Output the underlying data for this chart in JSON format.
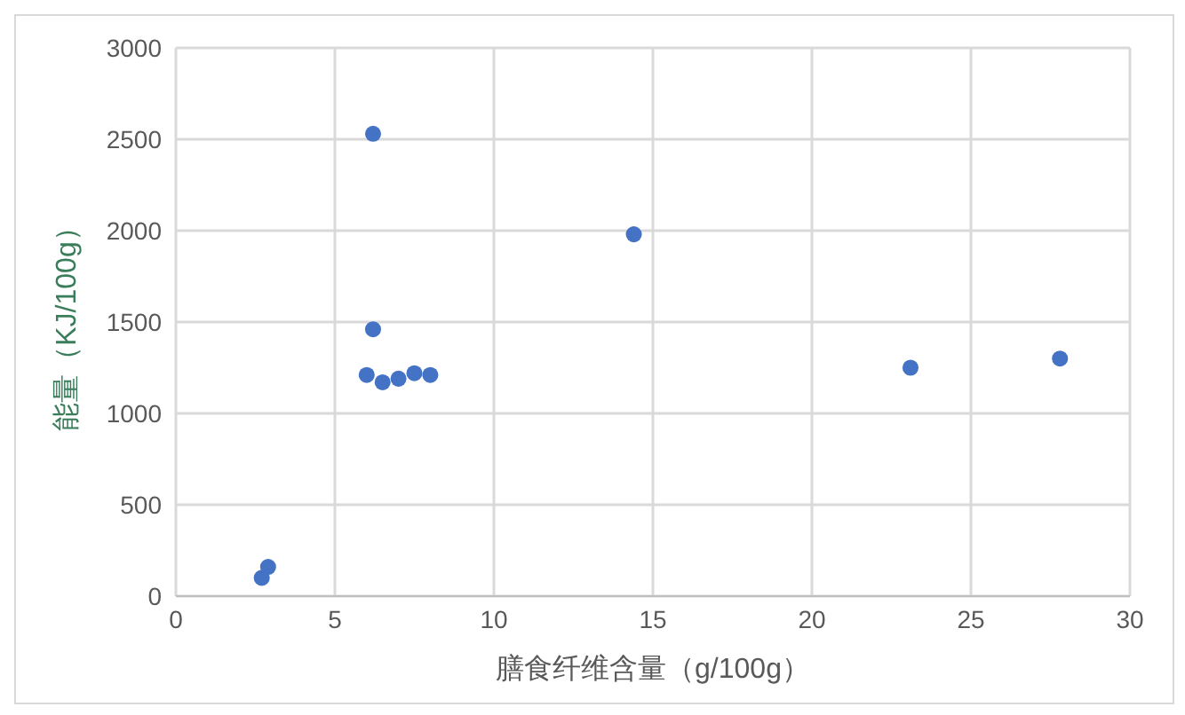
{
  "chart_data": {
    "type": "scatter",
    "xlabel": "膳食纤维含量（g/100g）",
    "ylabel": "能量（KJ/100g）",
    "x": [
      2.7,
      2.9,
      6.2,
      6.2,
      6.0,
      6.5,
      7.0,
      7.5,
      8.0,
      14.4,
      23.1,
      27.8
    ],
    "series": [
      {
        "color": "#4472c4",
        "values": [
          100,
          160,
          2530,
          1460,
          1210,
          1170,
          1190,
          1220,
          1210,
          1980,
          1250,
          1300
        ]
      }
    ],
    "xlim": [
      0,
      30
    ],
    "xticks": [
      0,
      5,
      10,
      15,
      20,
      25,
      30
    ],
    "ylim": [
      0,
      3000
    ],
    "yticks": [
      0,
      500,
      1000,
      1500,
      2000,
      2500,
      3000
    ],
    "grid": true,
    "marker": "circle",
    "legend": false
  }
}
